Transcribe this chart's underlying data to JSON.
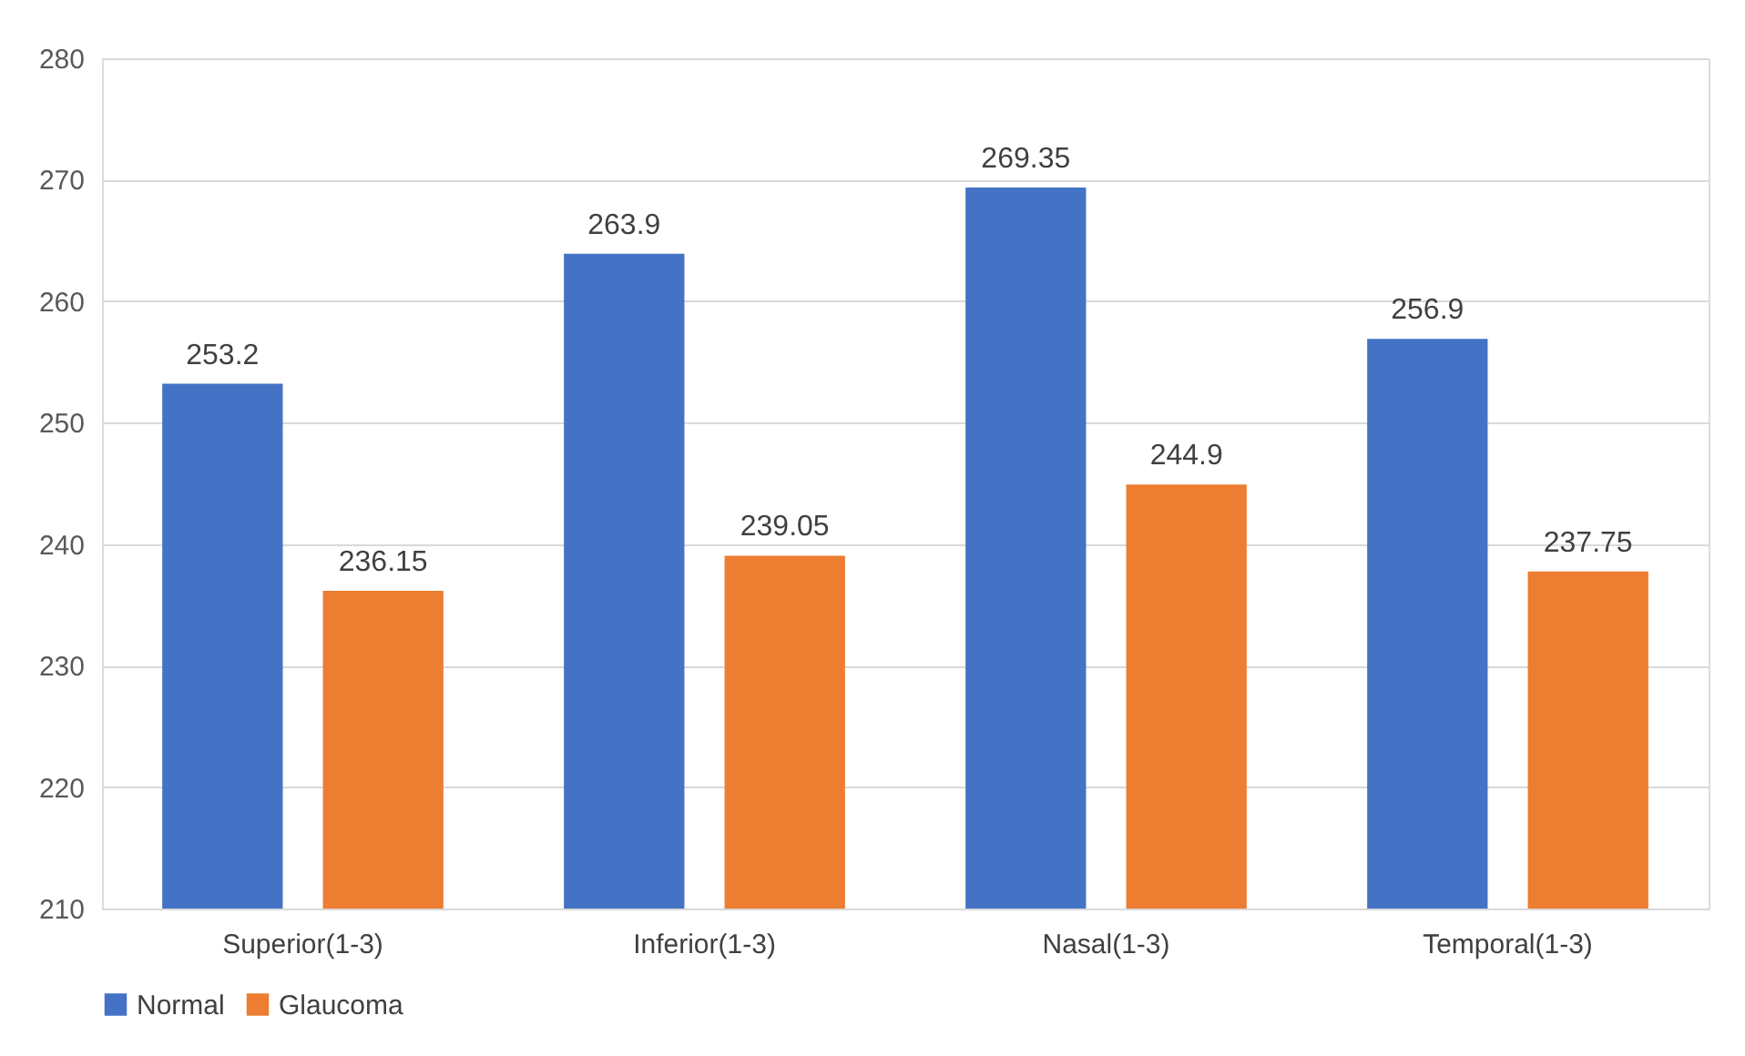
{
  "chart_data": {
    "type": "bar",
    "categories": [
      "Superior(1-3)",
      "Inferior(1-3)",
      "Nasal(1-3)",
      "Temporal(1-3)"
    ],
    "series": [
      {
        "name": "Normal",
        "color": "#4472c4",
        "values": [
          253.2,
          263.9,
          269.35,
          256.9
        ]
      },
      {
        "name": "Glaucoma",
        "color": "#ed7d31",
        "values": [
          236.15,
          239.05,
          244.9,
          237.75
        ]
      }
    ],
    "ylim": [
      210,
      280
    ],
    "yticks": [
      210,
      220,
      230,
      240,
      250,
      260,
      270,
      280
    ],
    "grid": "y",
    "legend": "bottom",
    "data_labels": true
  }
}
